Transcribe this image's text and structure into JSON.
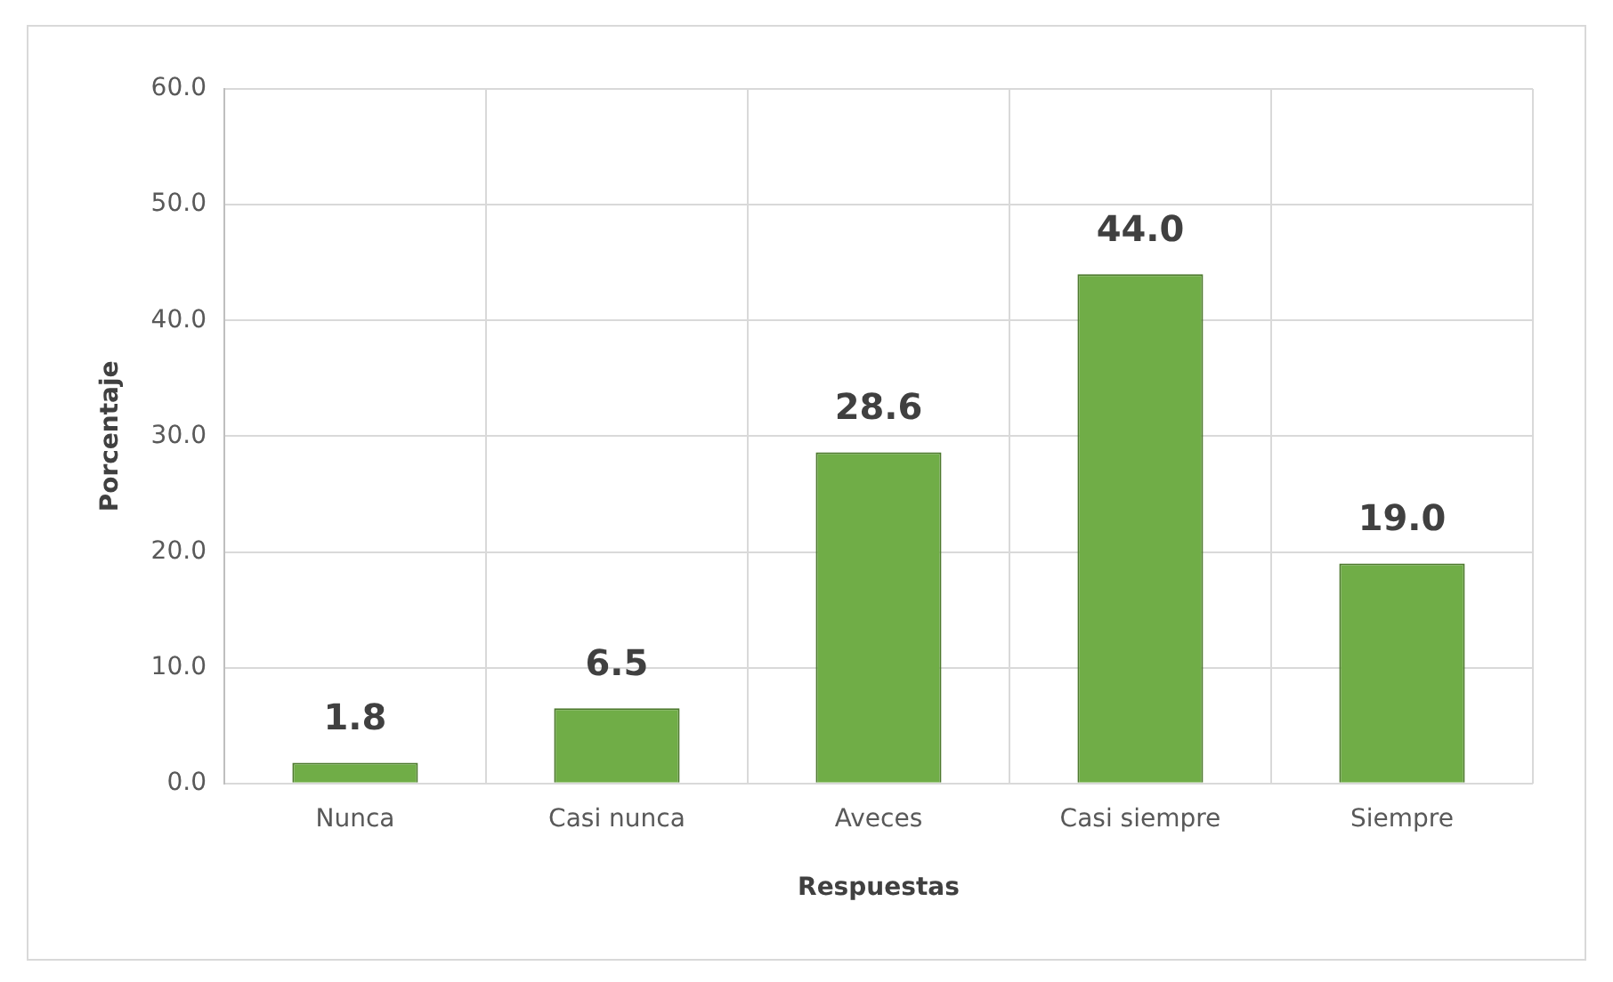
{
  "chart_data": {
    "type": "bar",
    "xlabel": "Respuestas",
    "ylabel": "Porcentaje",
    "categories": [
      "Nunca",
      "Casi nunca",
      "Aveces",
      "Casi siempre",
      "Siempre"
    ],
    "values": [
      1.8,
      6.5,
      28.6,
      44.0,
      19.0
    ],
    "value_labels": [
      "1.8",
      "6.5",
      "28.6",
      "44.0",
      "19.0"
    ],
    "color": "#70ad47",
    "ylim": [
      0,
      60
    ],
    "yticks": [
      {
        "value": 0,
        "label": "0.0"
      },
      {
        "value": 10,
        "label": "10.0"
      },
      {
        "value": 20,
        "label": "20.0"
      },
      {
        "value": 30,
        "label": "30.0"
      },
      {
        "value": 40,
        "label": "40.0"
      },
      {
        "value": 50,
        "label": "50.0"
      },
      {
        "value": 60,
        "label": "60.0"
      }
    ],
    "grid": true,
    "legend": false
  }
}
